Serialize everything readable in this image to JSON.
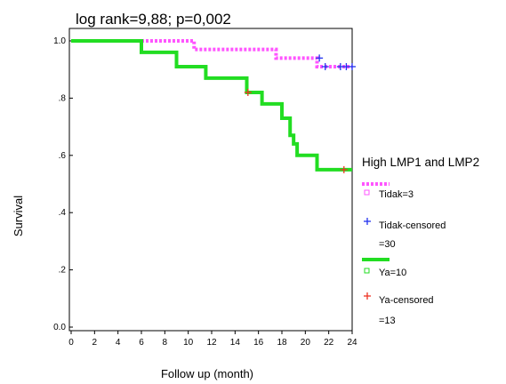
{
  "chart_data": {
    "type": "line",
    "subtype": "kaplan-meier survival curve",
    "title": "log rank=9,88; p=0,002",
    "xlabel": "Follow up (month)",
    "ylabel": "Survival",
    "xlim": [
      0,
      24
    ],
    "ylim": [
      0,
      1
    ],
    "xticks": [
      "0",
      "2",
      "4",
      "6",
      "8",
      "10",
      "12",
      "14",
      "16",
      "18",
      "20",
      "22",
      "24"
    ],
    "yticks": [
      "0.0",
      ".2",
      ".4",
      ".6",
      ".8",
      "1.0"
    ],
    "grid": false,
    "legend": {
      "title": "High LMP1 and LMP2",
      "placement": "right",
      "entries": [
        {
          "label": "",
          "kind": "line",
          "series": "tidak"
        },
        {
          "label": "Tidak=3",
          "kind": "event-marker",
          "series": "tidak"
        },
        {
          "label": "Tidak-censored",
          "kind": "censor-marker",
          "series": "tidak"
        },
        {
          "label": "=30",
          "kind": "continuation"
        },
        {
          "label": "",
          "kind": "line",
          "series": "ya"
        },
        {
          "label": "Ya=10",
          "kind": "event-marker",
          "series": "ya"
        },
        {
          "label": "Ya-censored",
          "kind": "censor-marker",
          "series": "ya"
        },
        {
          "label": "=13",
          "kind": "continuation"
        }
      ]
    },
    "series": [
      {
        "id": "tidak",
        "color": "#ff55ff",
        "style": "dotted",
        "censor_color": "#2233ee",
        "steps": [
          [
            6,
            1.0
          ],
          [
            10.5,
            0.97
          ],
          [
            17.5,
            0.94
          ],
          [
            21,
            0.91
          ],
          [
            24,
            0.91
          ]
        ],
        "censored": [
          [
            21.2,
            0.94
          ],
          [
            21.7,
            0.91
          ],
          [
            23.0,
            0.91
          ],
          [
            23.5,
            0.91
          ],
          [
            24.0,
            0.91
          ]
        ]
      },
      {
        "id": "ya",
        "color": "#22dd22",
        "style": "solid",
        "censor_color": "#ee3322",
        "steps": [
          [
            0,
            1.0
          ],
          [
            6,
            0.96
          ],
          [
            9,
            0.91
          ],
          [
            11.5,
            0.87
          ],
          [
            15,
            0.82
          ],
          [
            16.3,
            0.78
          ],
          [
            18,
            0.73
          ],
          [
            18.7,
            0.67
          ],
          [
            19,
            0.64
          ],
          [
            19.3,
            0.6
          ],
          [
            21,
            0.55
          ],
          [
            24,
            0.55
          ]
        ],
        "censored": [
          [
            15.1,
            0.82
          ],
          [
            23.3,
            0.55
          ]
        ]
      }
    ]
  }
}
